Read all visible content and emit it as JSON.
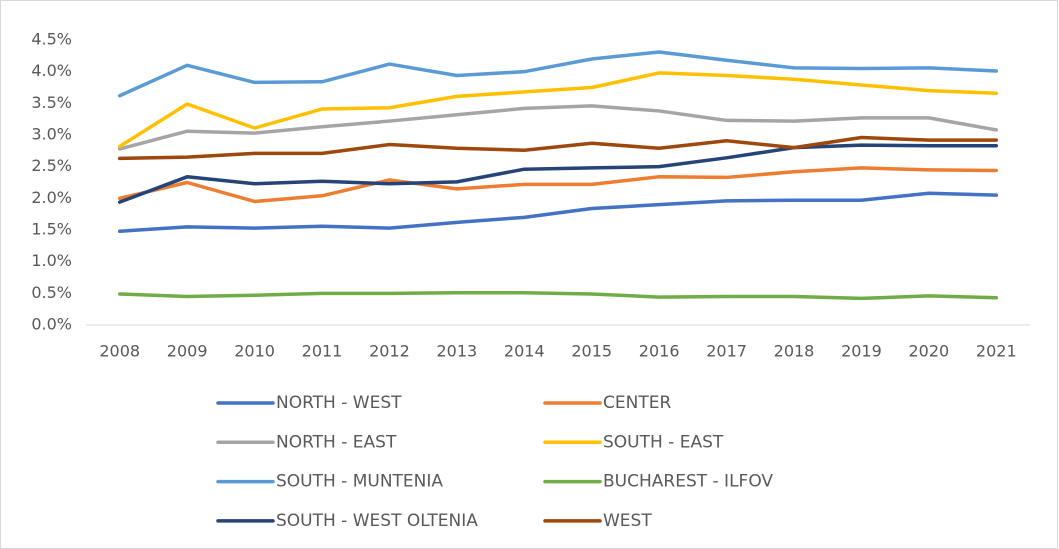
{
  "chart_data": {
    "type": "line",
    "categories": [
      "2008",
      "2009",
      "2010",
      "2011",
      "2012",
      "2013",
      "2014",
      "2015",
      "2016",
      "2017",
      "2018",
      "2019",
      "2020",
      "2021"
    ],
    "ylim": [
      0,
      4.5
    ],
    "yticks": [
      {
        "value": 0,
        "label": "0.0%"
      },
      {
        "value": 0.5,
        "label": "0.5%"
      },
      {
        "value": 1,
        "label": "1.0%"
      },
      {
        "value": 1.5,
        "label": "1.5%"
      },
      {
        "value": 2,
        "label": "2.0%"
      },
      {
        "value": 2.5,
        "label": "2.5%"
      },
      {
        "value": 3,
        "label": "3.0%"
      },
      {
        "value": 3.5,
        "label": "3.5%"
      },
      {
        "value": 4,
        "label": "4.0%"
      },
      {
        "value": 4.5,
        "label": "4.5%"
      }
    ],
    "grid": false,
    "legend": "bottom",
    "series": [
      {
        "name": "NORTH - WEST",
        "color": "#4472c4",
        "values": [
          1.48,
          1.55,
          1.53,
          1.56,
          1.53,
          1.62,
          1.7,
          1.84,
          1.9,
          1.96,
          1.97,
          1.97,
          2.08,
          2.05
        ]
      },
      {
        "name": "CENTER",
        "color": "#ed7d31",
        "values": [
          2.0,
          2.25,
          1.95,
          2.04,
          2.29,
          2.15,
          2.22,
          2.22,
          2.34,
          2.33,
          2.42,
          2.48,
          2.45,
          2.44
        ]
      },
      {
        "name": "NORTH - EAST",
        "color": "#a5a5a5",
        "values": [
          2.78,
          3.06,
          3.03,
          3.13,
          3.22,
          3.32,
          3.42,
          3.46,
          3.38,
          3.23,
          3.22,
          3.27,
          3.27,
          3.08
        ]
      },
      {
        "name": "SOUTH - EAST",
        "color": "#ffc000",
        "values": [
          2.82,
          3.49,
          3.11,
          3.41,
          3.43,
          3.61,
          3.68,
          3.75,
          3.98,
          3.94,
          3.88,
          3.79,
          3.7,
          3.66
        ]
      },
      {
        "name": "SOUTH - MUNTENIA",
        "color": "#5b9bd5",
        "values": [
          3.62,
          4.1,
          3.83,
          3.84,
          4.12,
          3.94,
          4.0,
          4.2,
          4.31,
          4.18,
          4.06,
          4.05,
          4.06,
          4.01
        ]
      },
      {
        "name": "BUCHAREST - ILFOV",
        "color": "#70ad47",
        "values": [
          0.49,
          0.45,
          0.47,
          0.5,
          0.5,
          0.51,
          0.51,
          0.49,
          0.44,
          0.45,
          0.45,
          0.42,
          0.46,
          0.43
        ]
      },
      {
        "name": "SOUTH - WEST OLTENIA",
        "color": "#264478",
        "values": [
          1.94,
          2.34,
          2.23,
          2.27,
          2.23,
          2.26,
          2.46,
          2.48,
          2.5,
          2.64,
          2.8,
          2.84,
          2.83,
          2.83
        ]
      },
      {
        "name": "WEST",
        "color": "#9e480e",
        "values": [
          2.63,
          2.65,
          2.71,
          2.71,
          2.85,
          2.79,
          2.76,
          2.87,
          2.79,
          2.91,
          2.8,
          2.96,
          2.92,
          2.92
        ]
      }
    ]
  }
}
